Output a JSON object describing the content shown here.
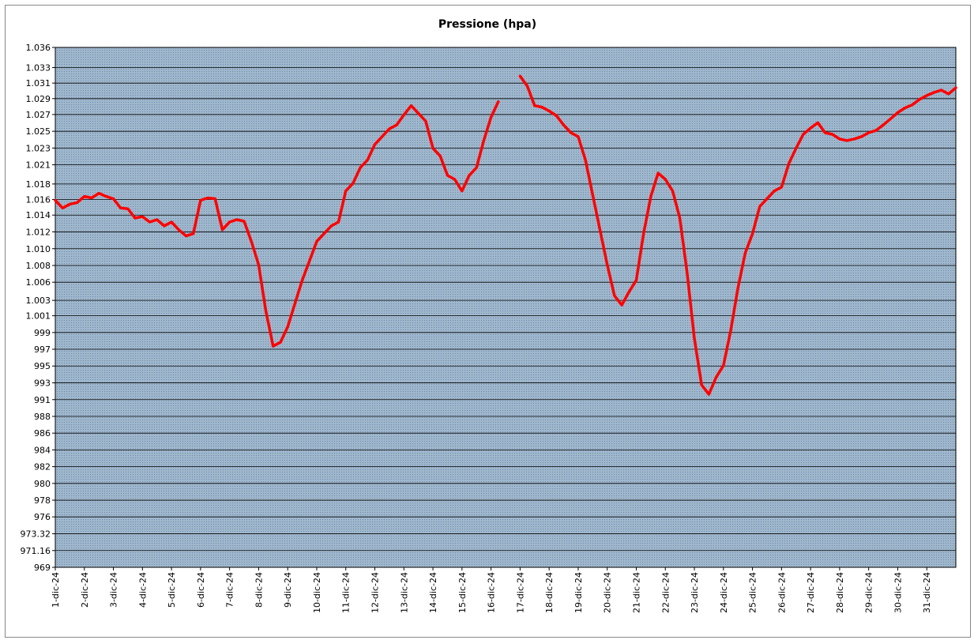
{
  "chart_data": {
    "type": "line",
    "title": "Pressione (hpa)",
    "color": "#ff0000",
    "grid": true,
    "xlim": [
      1,
      32
    ],
    "ylim": [
      969,
      1036
    ],
    "xticks": [
      {
        "value": 1,
        "label": "1-dic-24"
      },
      {
        "value": 2,
        "label": "2-dic-24"
      },
      {
        "value": 3,
        "label": "3-dic-24"
      },
      {
        "value": 4,
        "label": "4-dic-24"
      },
      {
        "value": 5,
        "label": "5-dic-24"
      },
      {
        "value": 6,
        "label": "6-dic-24"
      },
      {
        "value": 7,
        "label": "7-dic-24"
      },
      {
        "value": 8,
        "label": "8-dic-24"
      },
      {
        "value": 9,
        "label": "9-dic-24"
      },
      {
        "value": 10,
        "label": "10-dic-24"
      },
      {
        "value": 11,
        "label": "11-dic-24"
      },
      {
        "value": 12,
        "label": "12-dic-24"
      },
      {
        "value": 13,
        "label": "13-dic-24"
      },
      {
        "value": 14,
        "label": "14-dic-24"
      },
      {
        "value": 15,
        "label": "15-dic-24"
      },
      {
        "value": 16,
        "label": "16-dic-24"
      },
      {
        "value": 17,
        "label": "17-dic-24"
      },
      {
        "value": 18,
        "label": "18-dic-24"
      },
      {
        "value": 19,
        "label": "19-dic-24"
      },
      {
        "value": 20,
        "label": "20-dic-24"
      },
      {
        "value": 21,
        "label": "21-dic-24"
      },
      {
        "value": 22,
        "label": "22-dic-24"
      },
      {
        "value": 23,
        "label": "23-dic-24"
      },
      {
        "value": 24,
        "label": "24-dic-24"
      },
      {
        "value": 25,
        "label": "25-dic-24"
      },
      {
        "value": 26,
        "label": "26-dic-24"
      },
      {
        "value": 27,
        "label": "27-dic-24"
      },
      {
        "value": 28,
        "label": "28-dic-24"
      },
      {
        "value": 29,
        "label": "29-dic-24"
      },
      {
        "value": 30,
        "label": "30-dic-24"
      },
      {
        "value": 31,
        "label": "31-dic-24"
      }
    ],
    "yticks": [
      969,
      971.16,
      973.32,
      {
        "value": 975.5,
        "label": "976"
      },
      {
        "value": 977.65,
        "label": "978"
      },
      {
        "value": 979.81,
        "label": "980"
      },
      {
        "value": 981.97,
        "label": "982"
      },
      {
        "value": 984.13,
        "label": "984"
      },
      {
        "value": 986.29,
        "label": "986"
      },
      {
        "value": 988.45,
        "label": "988"
      },
      {
        "value": 990.61,
        "label": "991"
      },
      {
        "value": 992.77,
        "label": "993"
      },
      {
        "value": 994.94,
        "label": "995"
      },
      {
        "value": 997.1,
        "label": "997"
      },
      {
        "value": 999.26,
        "label": "999"
      },
      {
        "value": 1001.42,
        "label": "1.001"
      },
      {
        "value": 1003.4,
        "label": "1.003"
      },
      {
        "value": 1005.74,
        "label": "1.006"
      },
      {
        "value": 1007.9,
        "label": "1.008"
      },
      {
        "value": 1010.06,
        "label": "1.010"
      },
      {
        "value": 1012.23,
        "label": "1.012"
      },
      {
        "value": 1014.39,
        "label": "1.014"
      },
      {
        "value": 1016.4,
        "label": "1.016"
      },
      {
        "value": 1018.4,
        "label": "1.018"
      },
      {
        "value": 1020.87,
        "label": "1.021"
      },
      {
        "value": 1023.03,
        "label": "1.023"
      },
      {
        "value": 1025.19,
        "label": "1.025"
      },
      {
        "value": 1027.35,
        "label": "1.027"
      },
      {
        "value": 1029.4,
        "label": "1.029"
      },
      {
        "value": 1031.4,
        "label": "1.031"
      },
      {
        "value": 1033.4,
        "label": "1.033"
      },
      {
        "value": 1036,
        "label": "1.036"
      }
    ],
    "x": [
      1,
      1.25,
      1.5,
      1.75,
      2,
      2.25,
      2.5,
      2.75,
      3,
      3.25,
      3.5,
      3.75,
      4,
      4.25,
      4.5,
      4.75,
      5,
      5.25,
      5.5,
      5.75,
      6,
      6.25,
      6.5,
      6.75,
      7,
      7.25,
      7.5,
      7.75,
      8,
      8.25,
      8.5,
      8.75,
      9,
      9.25,
      9.5,
      9.75,
      10,
      10.25,
      10.5,
      10.75,
      11,
      11.25,
      11.5,
      11.75,
      12,
      12.25,
      12.5,
      12.75,
      13,
      13.25,
      13.5,
      13.75,
      14,
      14.25,
      14.5,
      14.75,
      15,
      15.25,
      15.5,
      15.75,
      16,
      16.25,
      16.5,
      16.75,
      17,
      17.25,
      17.5,
      17.75,
      18,
      18.25,
      18.5,
      18.75,
      19,
      19.25,
      19.5,
      19.75,
      20,
      20.25,
      20.5,
      20.75,
      21,
      21.25,
      21.5,
      21.75,
      22,
      22.25,
      22.5,
      22.75,
      23,
      23.25,
      23.5,
      23.75,
      24,
      24.25,
      24.5,
      24.75,
      25,
      25.25,
      25.5,
      25.75,
      26,
      26.25,
      26.5,
      26.75,
      27,
      27.25,
      27.5,
      27.75,
      28,
      28.25,
      28.5,
      28.75,
      29,
      29.25,
      29.5,
      29.75,
      30,
      30.25,
      30.5,
      30.75,
      31,
      31.25,
      31.5,
      31.75,
      32
    ],
    "values": [
      1016.3,
      1015.3,
      1015.8,
      1016.0,
      1016.8,
      1016.6,
      1017.2,
      1016.8,
      1016.5,
      1015.3,
      1015.2,
      1014.0,
      1014.2,
      1013.5,
      1013.8,
      1013.0,
      1013.5,
      1012.5,
      1011.7,
      1012.0,
      1016.3,
      1016.6,
      1016.5,
      1012.5,
      1013.5,
      1013.8,
      1013.6,
      1011.0,
      1008.0,
      1002.0,
      997.5,
      998.0,
      1000.0,
      1003.0,
      1006.0,
      1008.5,
      1011.0,
      1012.0,
      1013.0,
      1013.5,
      1017.5,
      1018.5,
      1020.5,
      1021.5,
      1023.5,
      1024.5,
      1025.5,
      1026.0,
      1027.3,
      1028.5,
      1027.5,
      1026.5,
      1023.0,
      1022.0,
      1019.5,
      1019.0,
      1017.5,
      1019.5,
      1020.5,
      1024.0,
      1027.0,
      1029.0,
      null,
      null,
      1032.3,
      1031.0,
      1028.5,
      1028.3,
      1027.8,
      1027.2,
      1026.0,
      1025.0,
      1024.5,
      1021.5,
      1017.0,
      1012.5,
      1008.0,
      1004.0,
      1002.8,
      1004.5,
      1006.0,
      1012.0,
      1016.8,
      1019.8,
      1019.0,
      1017.5,
      1014.0,
      1007.0,
      998.5,
      992.5,
      991.3,
      993.5,
      995.0,
      999.5,
      1005.0,
      1009.5,
      1012.0,
      1015.5,
      1016.5,
      1017.5,
      1018.0,
      1021.0,
      1023.0,
      1024.8,
      1025.6,
      1026.3,
      1025.0,
      1024.8,
      1024.2,
      1024.0,
      1024.2,
      1024.5,
      1025.0,
      1025.3,
      1026.0,
      1026.8,
      1027.6,
      1028.2,
      1028.6,
      1029.3,
      1029.8,
      1030.2,
      1030.5,
      1030.0,
      1030.8
    ]
  }
}
